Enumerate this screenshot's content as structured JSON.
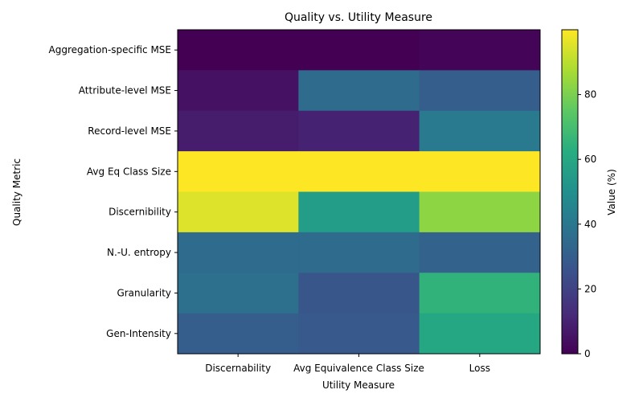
{
  "chart_data": {
    "type": "heatmap",
    "title": "Quality vs. Utility Measure",
    "xlabel": "Utility Measure",
    "ylabel": "Quality Metric",
    "x_categories": [
      "Discernability",
      "Avg Equivalence Class Size",
      "Loss"
    ],
    "y_categories": [
      "Aggregation-specific MSE",
      "Attribute-level MSE",
      "Record-level MSE",
      "Avg Eq Class Size",
      "Discernibility",
      "N.-U. entropy",
      "Granularity",
      "Gen-Intensity"
    ],
    "values": [
      [
        0,
        0,
        1
      ],
      [
        5,
        35,
        30
      ],
      [
        8,
        10,
        41
      ],
      [
        100,
        100,
        100
      ],
      [
        95,
        55,
        83
      ],
      [
        35,
        35,
        32
      ],
      [
        37,
        27,
        65
      ],
      [
        30,
        28,
        60
      ]
    ],
    "colorbar": {
      "label": "Value (%)",
      "ticks": [
        0,
        20,
        40,
        60,
        80
      ],
      "range": [
        0,
        100
      ],
      "colormap": "viridis"
    },
    "grid": false
  }
}
